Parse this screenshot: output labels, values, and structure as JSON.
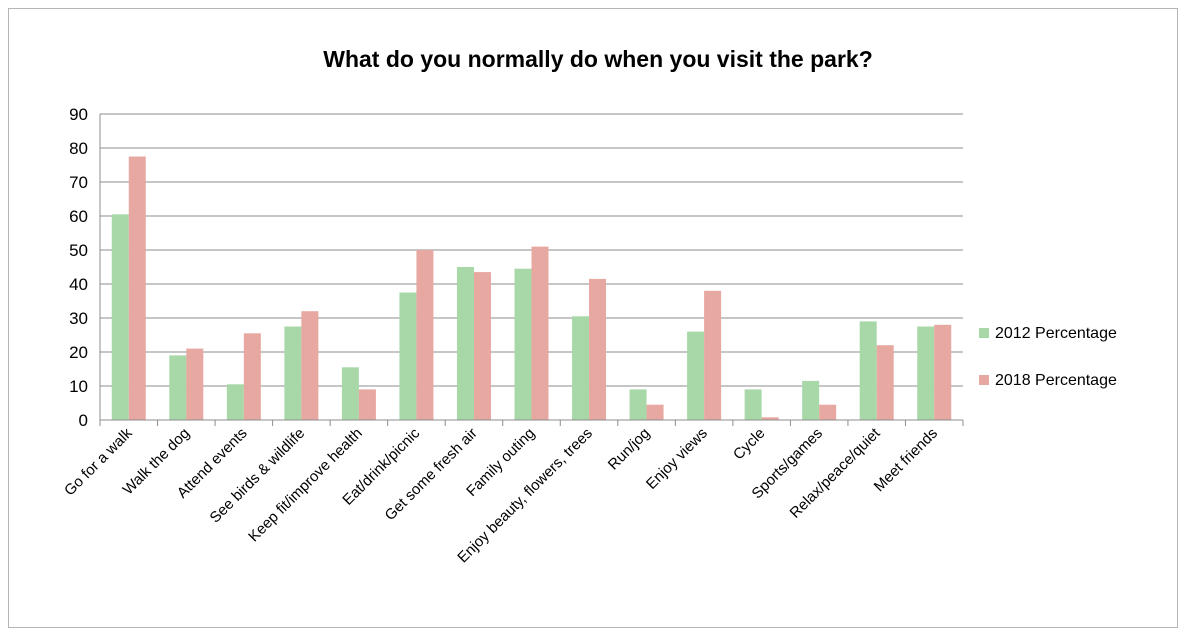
{
  "chart_data": {
    "type": "bar",
    "title": "What do you normally do when you visit the park?",
    "xlabel": "",
    "ylabel": "",
    "ylim": [
      0,
      90
    ],
    "yticks": [
      0,
      10,
      20,
      30,
      40,
      50,
      60,
      70,
      80,
      90
    ],
    "grid": true,
    "legend_position": "right",
    "categories": [
      "Go for a walk",
      "Walk the dog",
      "Attend events",
      "See birds & wildlife",
      "Keep fit/improve health",
      "Eat/drink/picnic",
      "Get some fresh air",
      "Family outing",
      "Enjoy beauty, flowers, trees",
      "Run/jog",
      "Enjoy views",
      "Cycle",
      "Sports/games",
      "Relax/peace/quiet",
      "Meet friends"
    ],
    "series": [
      {
        "name": "2012 Percentage",
        "color": "#a8d8a8",
        "values": [
          60.5,
          19,
          10.5,
          27.5,
          15.5,
          37.5,
          45,
          44.5,
          30.5,
          9,
          26,
          9,
          11.5,
          29,
          27.5
        ]
      },
      {
        "name": "2018 Percentage",
        "color": "#e6a8a0",
        "values": [
          77.5,
          21,
          25.5,
          32,
          9,
          50,
          43.5,
          51,
          41.5,
          4.5,
          38,
          0.8,
          4.5,
          22,
          28
        ]
      }
    ]
  }
}
